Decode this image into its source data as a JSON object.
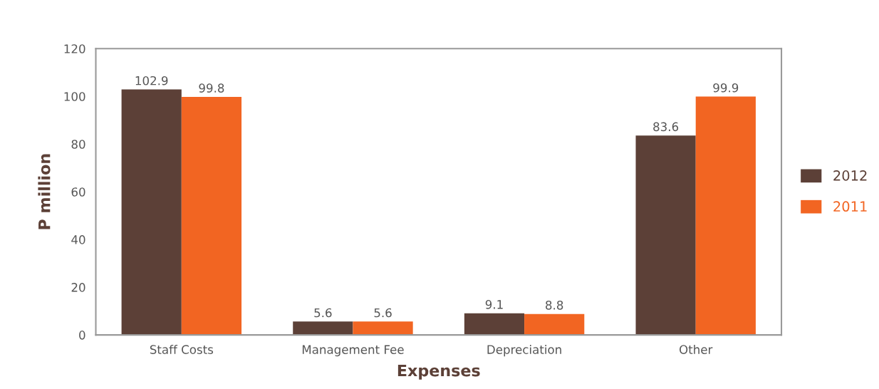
{
  "chart_data": {
    "type": "bar",
    "xlabel": "Expenses",
    "ylabel": "P million",
    "categories": [
      "Staff Costs",
      "Management Fee",
      "Depreciation",
      "Other"
    ],
    "series": [
      {
        "name": "2012",
        "color": "#5c4037",
        "values": [
          102.9,
          5.6,
          9.1,
          83.6
        ]
      },
      {
        "name": "2011",
        "color": "#f26522",
        "values": [
          99.8,
          5.6,
          8.8,
          99.9
        ]
      }
    ],
    "ylim": [
      0,
      120
    ],
    "yticks": [
      0,
      20,
      40,
      60,
      80,
      100,
      120
    ],
    "data_labels": true,
    "grid": false,
    "legend": "right"
  }
}
